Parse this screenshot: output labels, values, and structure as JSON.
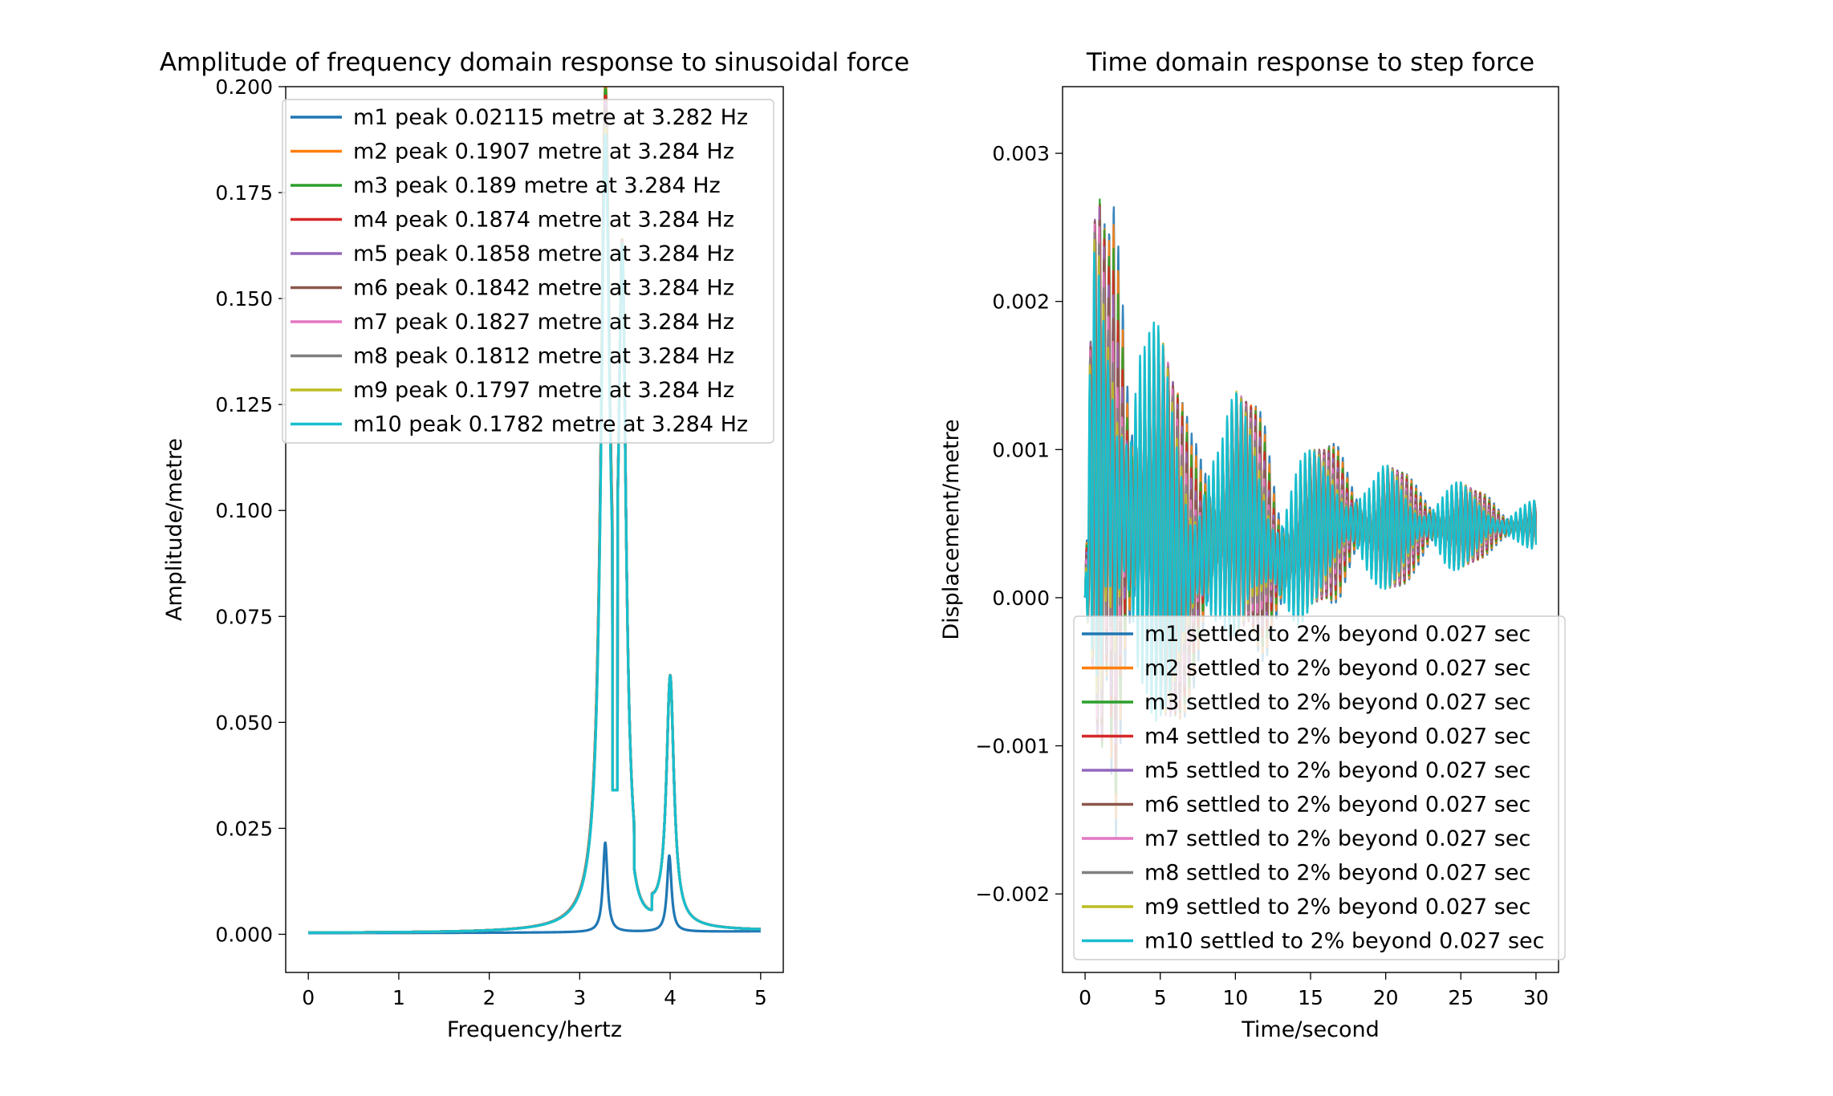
{
  "chart_data": [
    {
      "type": "line",
      "title": "Amplitude of frequency domain response to sinusoidal force",
      "xlabel": "Frequency/hertz",
      "ylabel": "Amplitude/metre",
      "xlim": [
        -0.25,
        5.25
      ],
      "ylim": [
        -0.009,
        0.2
      ],
      "xticks": [
        0,
        1,
        2,
        3,
        4,
        5
      ],
      "xtick_labels": [
        "0",
        "1",
        "2",
        "3",
        "4",
        "5"
      ],
      "yticks": [
        0.0,
        0.025,
        0.05,
        0.075,
        0.1,
        0.125,
        0.15,
        0.175,
        0.2
      ],
      "ytick_labels": [
        "0.000",
        "0.025",
        "0.050",
        "0.075",
        "0.100",
        "0.125",
        "0.150",
        "0.175",
        "0.200"
      ],
      "grid": false,
      "legend_position": "upper-right",
      "series": [
        {
          "name": "m1 peak 0.02115 metre at 3.282 Hz",
          "color": "#1f77b4",
          "peaks": [
            [
              3.282,
              0.02115,
              0.03
            ],
            [
              3.99,
              0.018,
              0.03
            ]
          ],
          "base": 0.0003
        },
        {
          "name": "m2 peak 0.1907 metre at 3.284 Hz",
          "color": "#ff7f0e",
          "peaks": [
            [
              3.284,
              0.1907,
              0.06
            ],
            [
              3.47,
              0.145,
              0.05
            ],
            [
              4.0,
              0.058,
              0.05
            ]
          ],
          "base": 0.0003
        },
        {
          "name": "m3 peak 0.189 metre at 3.284 Hz",
          "color": "#2ca02c",
          "peaks": [
            [
              3.284,
              0.189,
              0.06
            ],
            [
              3.47,
              0.145,
              0.05
            ],
            [
              4.0,
              0.058,
              0.05
            ]
          ],
          "base": 0.0003
        },
        {
          "name": "m4 peak 0.1874 metre at 3.284 Hz",
          "color": "#d62728",
          "peaks": [
            [
              3.284,
              0.1874,
              0.06
            ],
            [
              3.47,
              0.145,
              0.05
            ],
            [
              4.0,
              0.058,
              0.05
            ]
          ],
          "base": 0.0003
        },
        {
          "name": "m5 peak 0.1858 metre at 3.284 Hz",
          "color": "#9467bd",
          "peaks": [
            [
              3.284,
              0.1858,
              0.06
            ],
            [
              3.47,
              0.145,
              0.05
            ],
            [
              4.0,
              0.058,
              0.05
            ]
          ],
          "base": 0.0003
        },
        {
          "name": "m6 peak 0.1842 metre at 3.284 Hz",
          "color": "#8c564b",
          "peaks": [
            [
              3.284,
              0.1842,
              0.06
            ],
            [
              3.47,
              0.145,
              0.05
            ],
            [
              4.0,
              0.058,
              0.05
            ]
          ],
          "base": 0.0003
        },
        {
          "name": "m7 peak 0.1827 metre at 3.284 Hz",
          "color": "#e377c2",
          "peaks": [
            [
              3.284,
              0.1827,
              0.06
            ],
            [
              3.47,
              0.145,
              0.05
            ],
            [
              4.0,
              0.058,
              0.05
            ]
          ],
          "base": 0.0003
        },
        {
          "name": "m8 peak 0.1812 metre at 3.284 Hz",
          "color": "#7f7f7f",
          "peaks": [
            [
              3.284,
              0.1812,
              0.06
            ],
            [
              3.47,
              0.145,
              0.05
            ],
            [
              4.0,
              0.058,
              0.05
            ]
          ],
          "base": 0.0003
        },
        {
          "name": "m9 peak 0.1797 metre at 3.284 Hz",
          "color": "#bcbd22",
          "peaks": [
            [
              3.284,
              0.1797,
              0.06
            ],
            [
              3.47,
              0.145,
              0.05
            ],
            [
              4.0,
              0.058,
              0.05
            ]
          ],
          "base": 0.0003
        },
        {
          "name": "m10 peak 0.1782 metre at 3.284 Hz",
          "color": "#17becf",
          "peaks": [
            [
              3.284,
              0.1782,
              0.06
            ],
            [
              3.47,
              0.145,
              0.05
            ],
            [
              4.0,
              0.058,
              0.05
            ]
          ],
          "base": 0.0003
        }
      ]
    },
    {
      "type": "line",
      "title": "Time domain response to step force",
      "xlabel": "Time/second",
      "ylabel": "Displacement/metre",
      "xlim": [
        -1.5,
        31.5
      ],
      "ylim": [
        -0.00253,
        0.00345
      ],
      "xticks": [
        0,
        5,
        10,
        15,
        20,
        25,
        30
      ],
      "xtick_labels": [
        "0",
        "5",
        "10",
        "15",
        "20",
        "25",
        "30"
      ],
      "yticks": [
        -0.002,
        -0.001,
        0.0,
        0.001,
        0.002,
        0.003
      ],
      "ytick_labels": [
        "−0.002",
        "−0.001",
        "0.000",
        "0.001",
        "0.002",
        "0.003"
      ],
      "grid": false,
      "legend_position": "lower-right",
      "series": [
        {
          "name": "m1 settled to 2% beyond 0.027 sec",
          "color": "#1f77b4"
        },
        {
          "name": "m2 settled to 2% beyond 0.027 sec",
          "color": "#ff7f0e"
        },
        {
          "name": "m3 settled to 2% beyond 0.027 sec",
          "color": "#2ca02c"
        },
        {
          "name": "m4 settled to 2% beyond 0.027 sec",
          "color": "#d62728"
        },
        {
          "name": "m5 settled to 2% beyond 0.027 sec",
          "color": "#9467bd"
        },
        {
          "name": "m6 settled to 2% beyond 0.027 sec",
          "color": "#8c564b"
        },
        {
          "name": "m7 settled to 2% beyond 0.027 sec",
          "color": "#e377c2"
        },
        {
          "name": "m8 settled to 2% beyond 0.027 sec",
          "color": "#7f7f7f"
        },
        {
          "name": "m9 settled to 2% beyond 0.027 sec",
          "color": "#bcbd22"
        },
        {
          "name": "m10 settled to 2% beyond 0.027 sec",
          "color": "#17becf"
        }
      ],
      "envelope": {
        "mean": 0.00048,
        "t": [
          0,
          0.5,
          1,
          1.5,
          2,
          2.5,
          3,
          3.5,
          4,
          5,
          6,
          7,
          8,
          9,
          10,
          11,
          12,
          13,
          14,
          15,
          16,
          17,
          18,
          19,
          20,
          21,
          22,
          23,
          24,
          25,
          26,
          27,
          28,
          29,
          30
        ],
        "upper": [
          0.0,
          0.0025,
          0.0027,
          0.0024,
          0.0031,
          0.0029,
          0.0023,
          0.0026,
          0.0021,
          0.0018,
          0.0014,
          0.0013,
          0.0017,
          0.0012,
          0.0014,
          0.0013,
          0.0013,
          0.001,
          0.001,
          0.001,
          0.001,
          0.0011,
          0.001,
          0.00085,
          0.0009,
          0.00085,
          0.00082,
          0.0008,
          0.0008,
          0.00078,
          0.00072,
          0.0007,
          0.00065,
          0.00065,
          0.00066
        ],
        "lower": [
          0.0,
          -0.0005,
          -0.0012,
          -0.0005,
          -0.0022,
          -0.0016,
          -0.0013,
          -0.0015,
          -0.001,
          -0.0008,
          -0.0008,
          -0.0009,
          -0.001,
          -0.00035,
          -0.00025,
          -0.00015,
          -0.0006,
          -0.00055,
          -0.00035,
          -5e-05,
          0.0,
          -0.0001,
          0.0,
          3e-05,
          6e-05,
          8e-05,
          0.00013,
          0.00018,
          0.00013,
          0.0002,
          0.00025,
          0.00028,
          0.0003,
          0.00032,
          0.00033
        ]
      }
    }
  ]
}
